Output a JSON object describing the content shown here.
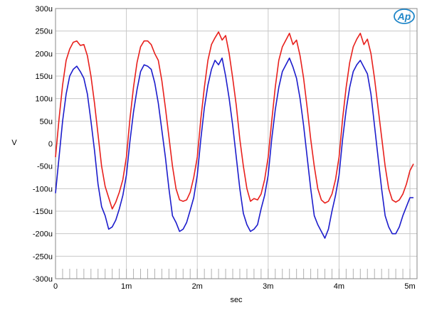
{
  "chart_data": {
    "type": "line",
    "title": "",
    "xlabel": "sec",
    "ylabel": "V",
    "xlim": [
      0,
      0.0051
    ],
    "ylim": [
      -0.0003,
      0.0003
    ],
    "x_ticks": [
      {
        "value": 0,
        "label": "0"
      },
      {
        "value": 0.001,
        "label": "1m"
      },
      {
        "value": 0.002,
        "label": "2m"
      },
      {
        "value": 0.003,
        "label": "3m"
      },
      {
        "value": 0.004,
        "label": "4m"
      },
      {
        "value": 0.005,
        "label": "5m"
      }
    ],
    "y_ticks": [
      {
        "value": 0.0003,
        "label": "300u"
      },
      {
        "value": 0.00025,
        "label": "250u"
      },
      {
        "value": 0.0002,
        "label": "200u"
      },
      {
        "value": 0.00015,
        "label": "150u"
      },
      {
        "value": 0.0001,
        "label": "100u"
      },
      {
        "value": 5e-05,
        "label": "50u"
      },
      {
        "value": 0,
        "label": "0"
      },
      {
        "value": -5e-05,
        "label": "-50u"
      },
      {
        "value": -0.0001,
        "label": "-100u"
      },
      {
        "value": -0.00015,
        "label": "-150u"
      },
      {
        "value": -0.0002,
        "label": "-200u"
      },
      {
        "value": -0.00025,
        "label": "-250u"
      },
      {
        "value": -0.0003,
        "label": "-300u"
      }
    ],
    "grid": true,
    "series": [
      {
        "color": "#e8201c",
        "x": [
          0,
          5e-05,
          0.0001,
          0.00015,
          0.0002,
          0.00025,
          0.0003,
          0.00035,
          0.0004,
          0.00045,
          0.0005,
          0.00055,
          0.0006,
          0.00065,
          0.0007,
          0.00075,
          0.0008,
          0.00085,
          0.0009,
          0.00095,
          0.001,
          0.00105,
          0.0011,
          0.00115,
          0.0012,
          0.00125,
          0.0013,
          0.00135,
          0.0014,
          0.00145,
          0.0015,
          0.00155,
          0.0016,
          0.00165,
          0.0017,
          0.00175,
          0.0018,
          0.00185,
          0.0019,
          0.00195,
          0.002,
          0.00205,
          0.0021,
          0.00215,
          0.0022,
          0.00225,
          0.0023,
          0.00235,
          0.0024,
          0.00245,
          0.0025,
          0.00255,
          0.0026,
          0.00265,
          0.0027,
          0.00275,
          0.0028,
          0.00285,
          0.0029,
          0.00295,
          0.003,
          0.00305,
          0.0031,
          0.00315,
          0.0032,
          0.00325,
          0.0033,
          0.00335,
          0.0034,
          0.00345,
          0.0035,
          0.00355,
          0.0036,
          0.00365,
          0.0037,
          0.00375,
          0.0038,
          0.00385,
          0.0039,
          0.00395,
          0.004,
          0.00405,
          0.0041,
          0.00415,
          0.0042,
          0.00425,
          0.0043,
          0.00435,
          0.0044,
          0.00445,
          0.0045,
          0.00455,
          0.0046,
          0.00465,
          0.0047,
          0.00475,
          0.0048,
          0.00485,
          0.0049,
          0.00495,
          0.005,
          0.00505
        ],
        "values": [
          -3e-05,
          5.5e-05,
          0.00013,
          0.000185,
          0.00021,
          0.000225,
          0.000228,
          0.000218,
          0.00022,
          0.000195,
          0.00015,
          9e-05,
          2e-05,
          -5e-05,
          -9.5e-05,
          -0.00012,
          -0.000145,
          -0.00013,
          -0.000108,
          -8e-05,
          -3e-05,
          5.5e-05,
          0.000125,
          0.00018,
          0.000215,
          0.000228,
          0.000228,
          0.00022,
          0.0002,
          0.000185,
          0.00014,
          8e-05,
          1.5e-05,
          -5e-05,
          -0.0001,
          -0.000125,
          -0.000128,
          -0.000125,
          -0.000108,
          -7.5e-05,
          -3e-05,
          5.5e-05,
          0.000125,
          0.000185,
          0.00022,
          0.000235,
          0.000248,
          0.00023,
          0.00024,
          0.0002,
          0.000145,
          8.5e-05,
          1e-05,
          -5e-05,
          -0.0001,
          -0.000128,
          -0.000122,
          -0.000125,
          -0.000112,
          -8e-05,
          -3e-05,
          5e-05,
          0.000125,
          0.000185,
          0.000215,
          0.00023,
          0.000245,
          0.00022,
          0.00023,
          0.000195,
          0.000145,
          8e-05,
          1e-05,
          -5e-05,
          -0.0001,
          -0.000125,
          -0.000132,
          -0.000128,
          -0.000112,
          -8e-05,
          -3e-05,
          5.5e-05,
          0.000125,
          0.00018,
          0.000215,
          0.000232,
          0.000245,
          0.00022,
          0.000232,
          0.0002,
          0.000145,
          8e-05,
          1.5e-05,
          -5e-05,
          -0.0001,
          -0.000125,
          -0.00013,
          -0.000125,
          -0.000112,
          -9e-05,
          -6e-05,
          -4.5e-05
        ]
      },
      {
        "color": "#1c1ccc",
        "x": [
          0,
          5e-05,
          0.0001,
          0.00015,
          0.0002,
          0.00025,
          0.0003,
          0.00035,
          0.0004,
          0.00045,
          0.0005,
          0.00055,
          0.0006,
          0.00065,
          0.0007,
          0.00075,
          0.0008,
          0.00085,
          0.0009,
          0.00095,
          0.001,
          0.00105,
          0.0011,
          0.00115,
          0.0012,
          0.00125,
          0.0013,
          0.00135,
          0.0014,
          0.00145,
          0.0015,
          0.00155,
          0.0016,
          0.00165,
          0.0017,
          0.00175,
          0.0018,
          0.00185,
          0.0019,
          0.00195,
          0.002,
          0.00205,
          0.0021,
          0.00215,
          0.0022,
          0.00225,
          0.0023,
          0.00235,
          0.0024,
          0.00245,
          0.0025,
          0.00255,
          0.0026,
          0.00265,
          0.0027,
          0.00275,
          0.0028,
          0.00285,
          0.0029,
          0.00295,
          0.003,
          0.00305,
          0.0031,
          0.00315,
          0.0032,
          0.00325,
          0.0033,
          0.00335,
          0.0034,
          0.00345,
          0.0035,
          0.00355,
          0.0036,
          0.00365,
          0.0037,
          0.00375,
          0.0038,
          0.00385,
          0.0039,
          0.00395,
          0.004,
          0.00405,
          0.0041,
          0.00415,
          0.0042,
          0.00425,
          0.0043,
          0.00435,
          0.0044,
          0.00445,
          0.0045,
          0.00455,
          0.0046,
          0.00465,
          0.0047,
          0.00475,
          0.0048,
          0.00485,
          0.0049,
          0.00495,
          0.005,
          0.00505
        ],
        "values": [
          -0.00011,
          -3e-05,
          5e-05,
          0.00011,
          0.00015,
          0.000165,
          0.000172,
          0.00016,
          0.000145,
          0.00011,
          5e-05,
          -1.5e-05,
          -9e-05,
          -0.00014,
          -0.00016,
          -0.00019,
          -0.000185,
          -0.00017,
          -0.000145,
          -0.000115,
          -7e-05,
          5e-06,
          7e-05,
          0.00012,
          0.00016,
          0.000175,
          0.000172,
          0.000165,
          0.000135,
          9e-05,
          3e-05,
          -3e-05,
          -0.0001,
          -0.00016,
          -0.000175,
          -0.000195,
          -0.00019,
          -0.000175,
          -0.000148,
          -0.00012,
          -7e-05,
          1e-05,
          8e-05,
          0.00013,
          0.000165,
          0.000185,
          0.000175,
          0.00019,
          0.00015,
          0.0001,
          4e-05,
          -3e-05,
          -0.0001,
          -0.000155,
          -0.00018,
          -0.000195,
          -0.00019,
          -0.00018,
          -0.000145,
          -0.000115,
          -7e-05,
          1e-05,
          7.5e-05,
          0.000125,
          0.00016,
          0.000175,
          0.00019,
          0.00017,
          0.000145,
          0.0001,
          4e-05,
          -3e-05,
          -0.0001,
          -0.00016,
          -0.00018,
          -0.000195,
          -0.00021,
          -0.00019,
          -0.00015,
          -0.000115,
          -7e-05,
          1e-05,
          7.5e-05,
          0.000125,
          0.00016,
          0.000175,
          0.000185,
          0.00017,
          0.000155,
          0.00011,
          4e-05,
          -3e-05,
          -0.0001,
          -0.00016,
          -0.000185,
          -0.0002,
          -0.0002,
          -0.000185,
          -0.00016,
          -0.00014,
          -0.00012,
          -0.00012
        ]
      }
    ]
  },
  "logo": {
    "text": "Ap"
  }
}
